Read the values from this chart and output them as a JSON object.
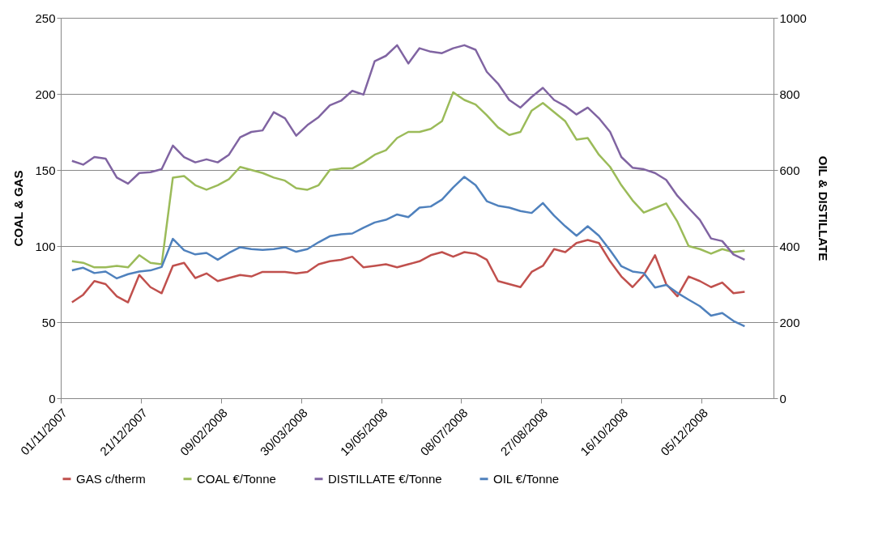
{
  "chart_data": {
    "type": "line",
    "ylabel": "COAL & GAS",
    "y2label": "OIL & DISTILLATE",
    "x": [
      "2007-11-08",
      "2007-11-15",
      "2007-11-22",
      "2007-11-29",
      "2007-12-06",
      "2007-12-13",
      "2007-12-20",
      "2007-12-27",
      "2008-01-03",
      "2008-01-10",
      "2008-01-17",
      "2008-01-24",
      "2008-01-31",
      "2008-02-07",
      "2008-02-14",
      "2008-02-21",
      "2008-02-28",
      "2008-03-06",
      "2008-03-13",
      "2008-03-20",
      "2008-03-27",
      "2008-04-03",
      "2008-04-10",
      "2008-04-17",
      "2008-04-24",
      "2008-05-01",
      "2008-05-08",
      "2008-05-15",
      "2008-05-22",
      "2008-05-29",
      "2008-06-05",
      "2008-06-12",
      "2008-06-19",
      "2008-06-26",
      "2008-07-03",
      "2008-07-10",
      "2008-07-17",
      "2008-07-24",
      "2008-07-31",
      "2008-08-07",
      "2008-08-14",
      "2008-08-21",
      "2008-08-28",
      "2008-09-04",
      "2008-09-11",
      "2008-09-18",
      "2008-09-25",
      "2008-10-02",
      "2008-10-09",
      "2008-10-16",
      "2008-10-23",
      "2008-10-30",
      "2008-11-06",
      "2008-11-13",
      "2008-11-20",
      "2008-11-27",
      "2008-12-04",
      "2008-12-11",
      "2008-12-18",
      "2008-12-25",
      "2009-01-01"
    ],
    "series": [
      {
        "name": "GAS c/therm",
        "color": "#c0504d",
        "values": [
          63,
          68,
          77,
          75,
          67,
          63,
          81,
          73,
          69,
          87,
          89,
          79,
          82,
          77,
          79,
          81,
          80,
          83,
          83,
          83,
          82,
          83,
          88,
          90,
          91,
          93,
          86,
          87,
          88,
          86,
          88,
          90,
          94,
          96,
          93,
          96,
          95,
          91,
          77,
          75,
          73,
          83,
          87,
          98,
          96,
          102,
          104,
          102,
          90,
          80,
          73,
          81,
          94,
          75,
          67,
          80,
          77,
          73,
          76,
          69,
          70
        ]
      },
      {
        "name": "COAL €/Tonne",
        "color": "#9bbb59",
        "values": [
          90,
          89,
          86,
          86,
          87,
          86,
          94,
          89,
          88,
          145,
          146,
          140,
          137,
          140,
          144,
          152,
          150,
          148,
          145,
          143,
          138,
          137,
          140,
          150,
          151,
          151,
          155,
          160,
          163,
          171,
          175,
          175,
          177,
          182,
          201,
          196,
          193,
          186,
          178,
          173,
          175,
          189,
          194,
          188,
          182,
          170,
          171,
          160,
          152,
          140,
          130,
          122,
          125,
          128,
          116,
          100,
          98,
          95,
          98,
          96,
          97
        ]
      },
      {
        "name": "DISTILLATE €/Tonne",
        "color": "#8064a2",
        "axis": "y2",
        "values": [
          624,
          614,
          634,
          630,
          580,
          564,
          592,
          594,
          602,
          664,
          634,
          620,
          628,
          620,
          640,
          686,
          700,
          704,
          752,
          736,
          690,
          718,
          739,
          770,
          782,
          808,
          798,
          886,
          900,
          928,
          880,
          920,
          911,
          907,
          920,
          928,
          916,
          858,
          827,
          784,
          764,
          792,
          816,
          784,
          768,
          746,
          764,
          736,
          700,
          634,
          606,
          602,
          592,
          574,
          532,
          500,
          469,
          420,
          413,
          378,
          364
        ]
      },
      {
        "name": "OIL €/Tonne",
        "color": "#4f81bd",
        "axis": "y2",
        "values": [
          336,
          343,
          329,
          333,
          315,
          326,
          333,
          336,
          345,
          419,
          389,
          378,
          382,
          364,
          382,
          397,
          392,
          390,
          392,
          397,
          385,
          392,
          410,
          426,
          431,
          433,
          448,
          462,
          469,
          483,
          476,
          501,
          504,
          522,
          554,
          582,
          560,
          518,
          506,
          501,
          492,
          487,
          513,
          480,
          452,
          427,
          452,
          427,
          389,
          347,
          333,
          329,
          291,
          298,
          277,
          259,
          242,
          217,
          224,
          203,
          189
        ]
      }
    ],
    "xlim": [
      "2007-11-01",
      "2009-01-19"
    ],
    "xticks": [
      {
        "value": "2007-11-01",
        "label": "01/11/2007"
      },
      {
        "value": "2007-12-21",
        "label": "21/12/2007"
      },
      {
        "value": "2008-02-09",
        "label": "09/02/2008"
      },
      {
        "value": "2008-03-30",
        "label": "30/03/2008"
      },
      {
        "value": "2008-05-19",
        "label": "19/05/2008"
      },
      {
        "value": "2008-07-08",
        "label": "08/07/2008"
      },
      {
        "value": "2008-08-27",
        "label": "27/08/2008"
      },
      {
        "value": "2008-10-16",
        "label": "16/10/2008"
      },
      {
        "value": "2008-12-05",
        "label": "05/12/2008"
      }
    ],
    "ylim": [
      0,
      250
    ],
    "yticks": [
      0,
      50,
      100,
      150,
      200,
      250
    ],
    "y2lim": [
      0,
      1000
    ],
    "y2ticks": [
      0,
      200,
      400,
      600,
      800,
      1000
    ],
    "grid": "y",
    "legend": "bottom",
    "marker": "none",
    "line_style": "solid"
  }
}
